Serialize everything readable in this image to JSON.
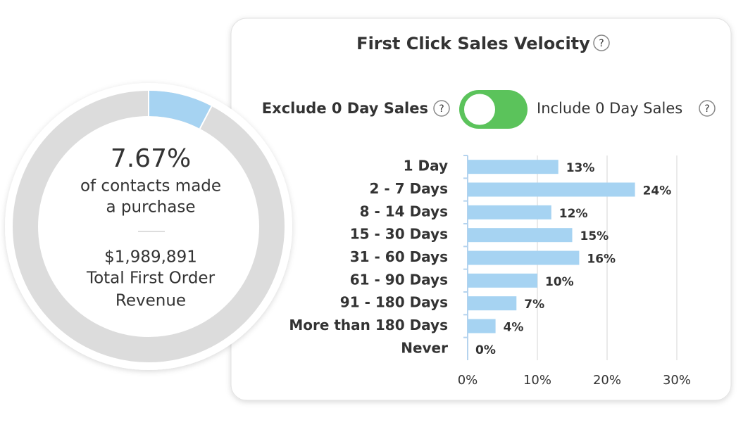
{
  "chart_data": [
    {
      "type": "donut",
      "values": [
        7.67
      ],
      "value_labels": [
        "7.67%"
      ],
      "color": "#a6d3f2",
      "subtitle_lines": [
        "of contacts made",
        "a purchase"
      ],
      "revenue": "$1,989,891",
      "revenue_label_lines": [
        "Total First Order",
        "Revenue"
      ]
    },
    {
      "type": "bar",
      "orientation": "horizontal",
      "title": "First Click Sales Velocity",
      "toggle_off_label": "Exclude 0 Day Sales",
      "toggle_on_label": "Include 0 Day Sales",
      "categories": [
        "1 Day",
        "2 - 7 Days",
        "8 - 14 Days",
        "15 - 30 Days",
        "31 - 60 Days",
        "61 - 90 Days",
        "91 - 180 Days",
        "More than 180 Days",
        "Never"
      ],
      "values": [
        13,
        24,
        12,
        15,
        16,
        10,
        7,
        4,
        0
      ],
      "value_labels": [
        "13%",
        "24%",
        "12%",
        "15%",
        "16%",
        "10%",
        "7%",
        "4%",
        "0%"
      ],
      "color": "#a6d3f2",
      "xlim": [
        0,
        30
      ],
      "xticks": [
        {
          "value": 0,
          "label": "0%"
        },
        {
          "value": 10,
          "label": "10%"
        },
        {
          "value": 20,
          "label": "20%"
        },
        {
          "value": 30,
          "label": "30%"
        }
      ],
      "grid": true
    }
  ]
}
